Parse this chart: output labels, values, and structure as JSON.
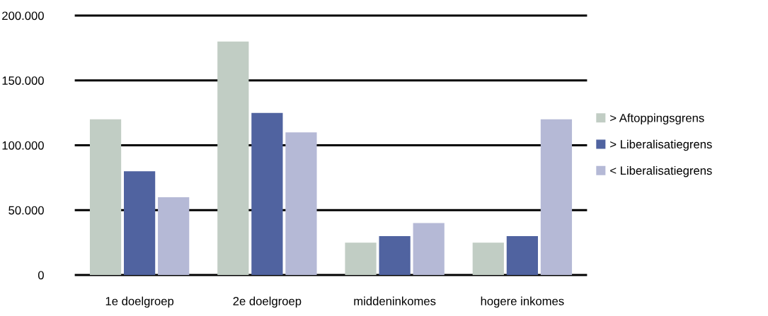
{
  "chart_data": {
    "type": "bar",
    "categories": [
      "1e doelgroep",
      "2e doelgroep",
      "middeninkomes",
      "hogere inkomes"
    ],
    "series": [
      {
        "name": "> Aftoppingsgrens",
        "color": "#c1cdc4",
        "values": [
          120000,
          180000,
          25000,
          25000
        ]
      },
      {
        "name": "> Liberalisatiegrens",
        "color": "#5063a0",
        "values": [
          80000,
          125000,
          30000,
          30000
        ]
      },
      {
        "name": "< Liberalisatiegrens",
        "color": "#b5b9d6",
        "values": [
          60000,
          110000,
          40000,
          120000
        ]
      }
    ],
    "ylim": [
      0,
      200000
    ],
    "yticks": [
      {
        "value": 0,
        "label": "0"
      },
      {
        "value": 50000,
        "label": "50.000"
      },
      {
        "value": 100000,
        "label": "100.000"
      },
      {
        "value": 150000,
        "label": "150.000"
      },
      {
        "value": 200000,
        "label": "200.000"
      }
    ],
    "grid": "y",
    "legend": "right"
  }
}
